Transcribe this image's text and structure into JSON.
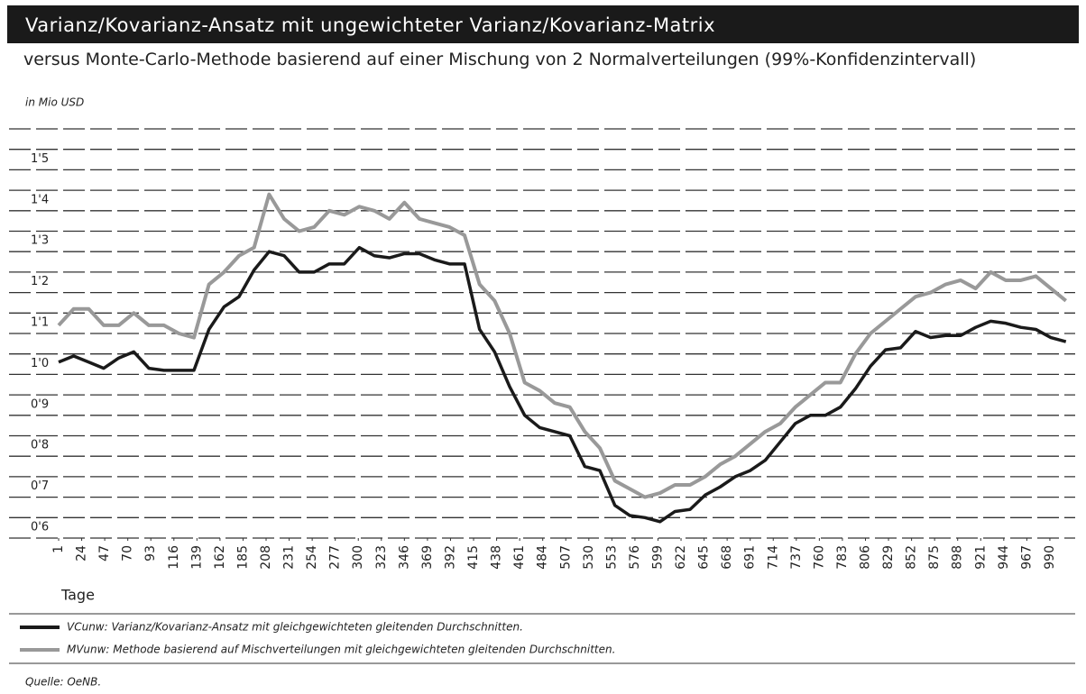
{
  "chart_data": {
    "type": "line",
    "title": "Varianz/Kovarianz-Ansatz mit ungewichteter Varianz/Kovarianz-Matrix",
    "subtitle": "versus Monte-Carlo-Methode basierend auf einer Mischung von 2 Normalverteilungen (99%-Konfidenzintervall)",
    "unit_label": "in Mio USD",
    "x_label": "Tage",
    "source": "Quelle: OeNB.",
    "x": [
      1,
      16,
      31,
      46,
      61,
      76,
      91,
      106,
      121,
      136,
      151,
      166,
      181,
      196,
      211,
      226,
      241,
      256,
      271,
      286,
      301,
      316,
      331,
      346,
      361,
      376,
      391,
      406,
      421,
      436,
      451,
      466,
      481,
      496,
      511,
      526,
      541,
      556,
      571,
      586,
      601,
      616,
      631,
      646,
      661,
      676,
      691,
      706,
      721,
      736,
      751,
      766,
      781,
      796,
      811,
      826,
      841,
      856,
      871,
      886,
      901,
      916,
      931,
      946,
      961,
      976,
      991,
      1006
    ],
    "series": [
      {
        "name": "VCunw: Varianz/Kovarianz-Ansatz mit gleichgewichteten gleitenden Durchschnitten.",
        "color": "#1a1a1a",
        "values": [
          1.03,
          1.045,
          1.03,
          1.015,
          1.04,
          1.055,
          1.015,
          1.01,
          1.01,
          1.01,
          1.11,
          1.165,
          1.19,
          1.255,
          1.3,
          1.29,
          1.25,
          1.25,
          1.27,
          1.27,
          1.31,
          1.29,
          1.285,
          1.295,
          1.295,
          1.28,
          1.27,
          1.27,
          1.11,
          1.055,
          0.97,
          0.9,
          0.87,
          0.86,
          0.85,
          0.775,
          0.765,
          0.68,
          0.655,
          0.65,
          0.64,
          0.665,
          0.67,
          0.705,
          0.725,
          0.75,
          0.765,
          0.79,
          0.835,
          0.88,
          0.9,
          0.9,
          0.92,
          0.965,
          1.02,
          1.06,
          1.065,
          1.105,
          1.09,
          1.095,
          1.095,
          1.115,
          1.13,
          1.125,
          1.115,
          1.11,
          1.09,
          1.08
        ]
      },
      {
        "name": "MVunw: Methode basierend auf Mischverteilungen mit gleichgewichteten gleitenden Durchschnitten.",
        "color": "#999999",
        "values": [
          1.12,
          1.16,
          1.16,
          1.12,
          1.12,
          1.15,
          1.12,
          1.12,
          1.1,
          1.09,
          1.22,
          1.25,
          1.29,
          1.31,
          1.44,
          1.38,
          1.35,
          1.36,
          1.4,
          1.39,
          1.41,
          1.4,
          1.38,
          1.42,
          1.38,
          1.37,
          1.36,
          1.34,
          1.22,
          1.18,
          1.1,
          0.98,
          0.96,
          0.93,
          0.92,
          0.86,
          0.82,
          0.74,
          0.72,
          0.7,
          0.71,
          0.73,
          0.73,
          0.75,
          0.78,
          0.8,
          0.83,
          0.86,
          0.88,
          0.92,
          0.95,
          0.98,
          0.98,
          1.05,
          1.1,
          1.13,
          1.16,
          1.19,
          1.2,
          1.22,
          1.23,
          1.21,
          1.25,
          1.23,
          1.23,
          1.24,
          1.21,
          1.18
        ]
      }
    ],
    "xlim": [
      1,
      1013
    ],
    "xticks": [
      1,
      24,
      47,
      70,
      93,
      116,
      139,
      162,
      185,
      208,
      231,
      254,
      277,
      300,
      323,
      346,
      369,
      392,
      415,
      438,
      461,
      484,
      507,
      530,
      553,
      576,
      599,
      622,
      645,
      668,
      691,
      714,
      737,
      760,
      783,
      806,
      829,
      852,
      875,
      898,
      921,
      944,
      967,
      990
    ],
    "ylim": [
      0.6,
      1.6
    ],
    "yticks": [
      {
        "value": 0.6,
        "label": "0'6"
      },
      {
        "value": 0.7,
        "label": "0'7"
      },
      {
        "value": 0.8,
        "label": "0'8"
      },
      {
        "value": 0.9,
        "label": "0'9"
      },
      {
        "value": 1.0,
        "label": "1'0"
      },
      {
        "value": 1.1,
        "label": "1'1"
      },
      {
        "value": 1.2,
        "label": "1'2"
      },
      {
        "value": 1.3,
        "label": "1'3"
      },
      {
        "value": 1.4,
        "label": "1'4"
      },
      {
        "value": 1.5,
        "label": "1'5"
      }
    ],
    "minor_yticks": [
      0.65,
      0.75,
      0.85,
      0.95,
      1.05,
      1.15,
      1.25,
      1.35,
      1.45,
      1.55,
      1.6
    ],
    "grid": true
  }
}
